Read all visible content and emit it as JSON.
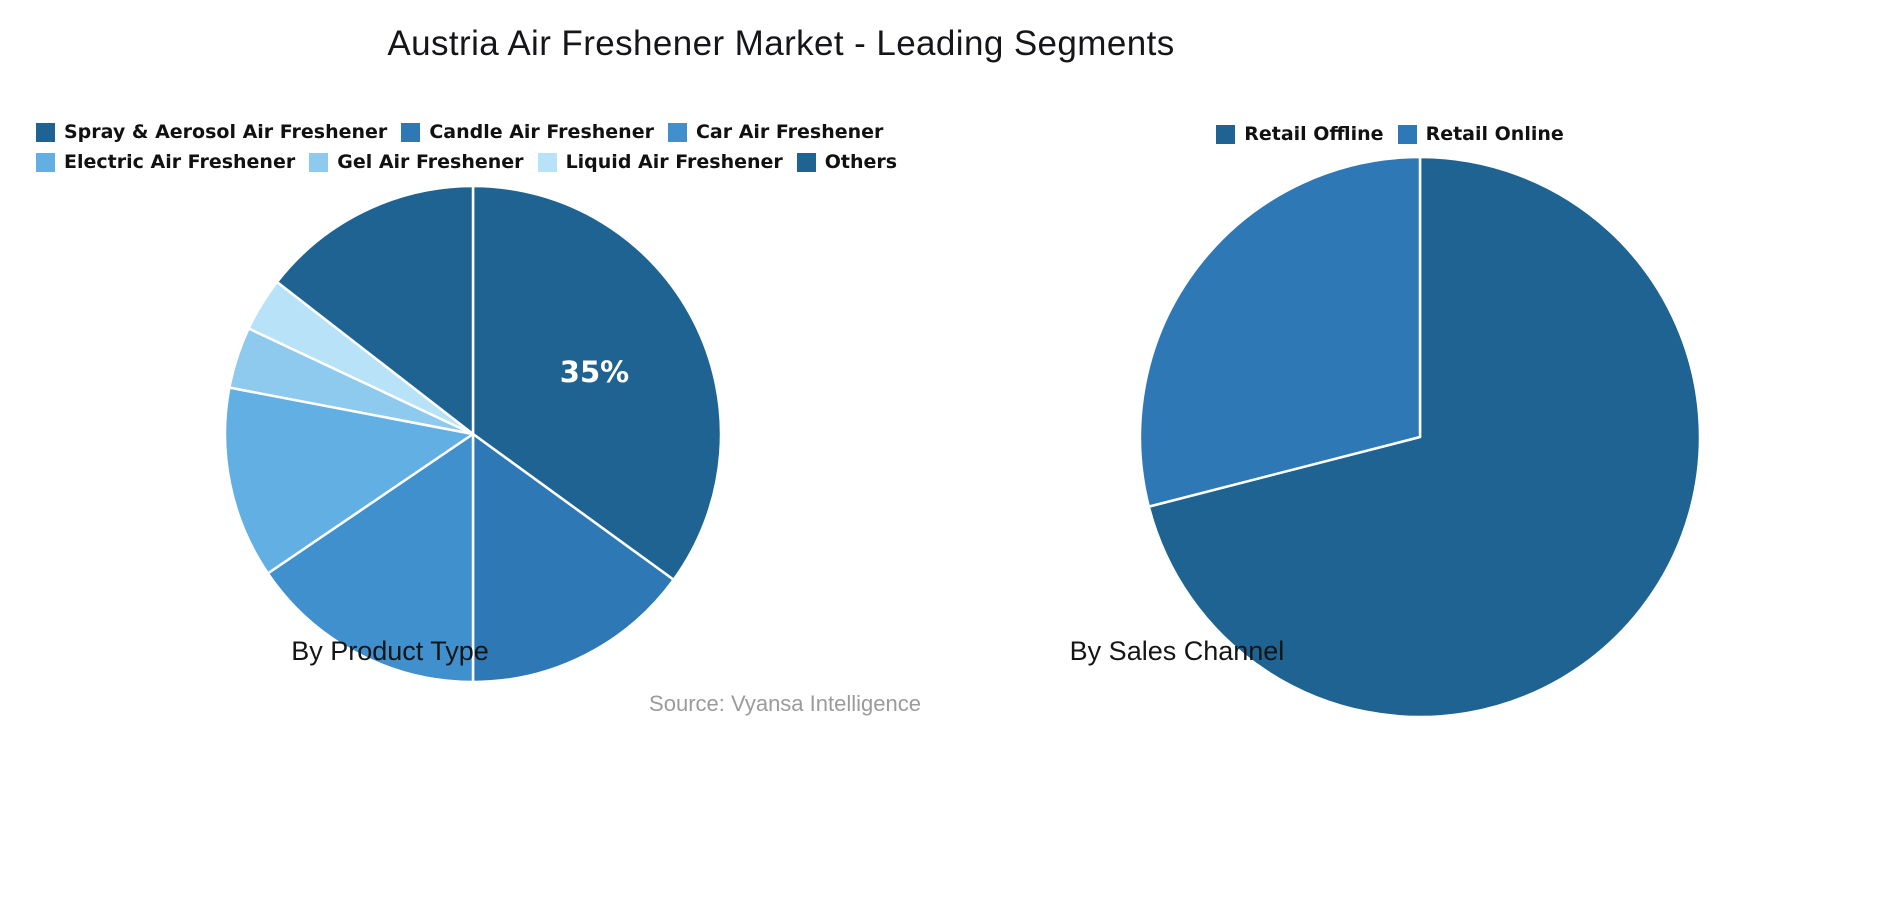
{
  "title": "Austria Air Freshener Market - Leading Segments",
  "source": "Source: Vyansa Intelligence",
  "chart_data": [
    {
      "type": "pie",
      "name": "product-type",
      "title": "By Product Type",
      "categories": [
        "Spray & Aerosol Air Freshener",
        "Candle Air Freshener",
        "Car Air Freshener",
        "Electric Air Freshener",
        "Gel Air Freshener",
        "Liquid Air Freshener",
        "Others"
      ],
      "values": [
        35,
        15,
        15.5,
        12.5,
        4,
        3.5,
        14.5
      ],
      "colors": [
        "#1e6391",
        "#2e79b5",
        "#3f90cd",
        "#62b0e3",
        "#8ecaee",
        "#b8e2f8",
        "#1e6391"
      ],
      "data_labels": [
        "35%",
        "",
        "",
        "",
        "",
        "",
        ""
      ],
      "start_angle": "12-oclock",
      "direction": "clockwise",
      "legend_position": "top",
      "legend_rows": [
        [
          0,
          1,
          2
        ],
        [
          3,
          4,
          5,
          6
        ]
      ]
    },
    {
      "type": "pie",
      "name": "sales-channel",
      "title": "By Sales Channel",
      "categories": [
        "Retail Offline",
        "Retail Online"
      ],
      "values": [
        71,
        29
      ],
      "colors": [
        "#1e6391",
        "#2e79b5"
      ],
      "data_labels": [
        "",
        ""
      ],
      "start_angle": "12-oclock",
      "direction": "clockwise",
      "legend_position": "top",
      "legend_rows": [
        [
          0,
          1
        ]
      ]
    }
  ]
}
